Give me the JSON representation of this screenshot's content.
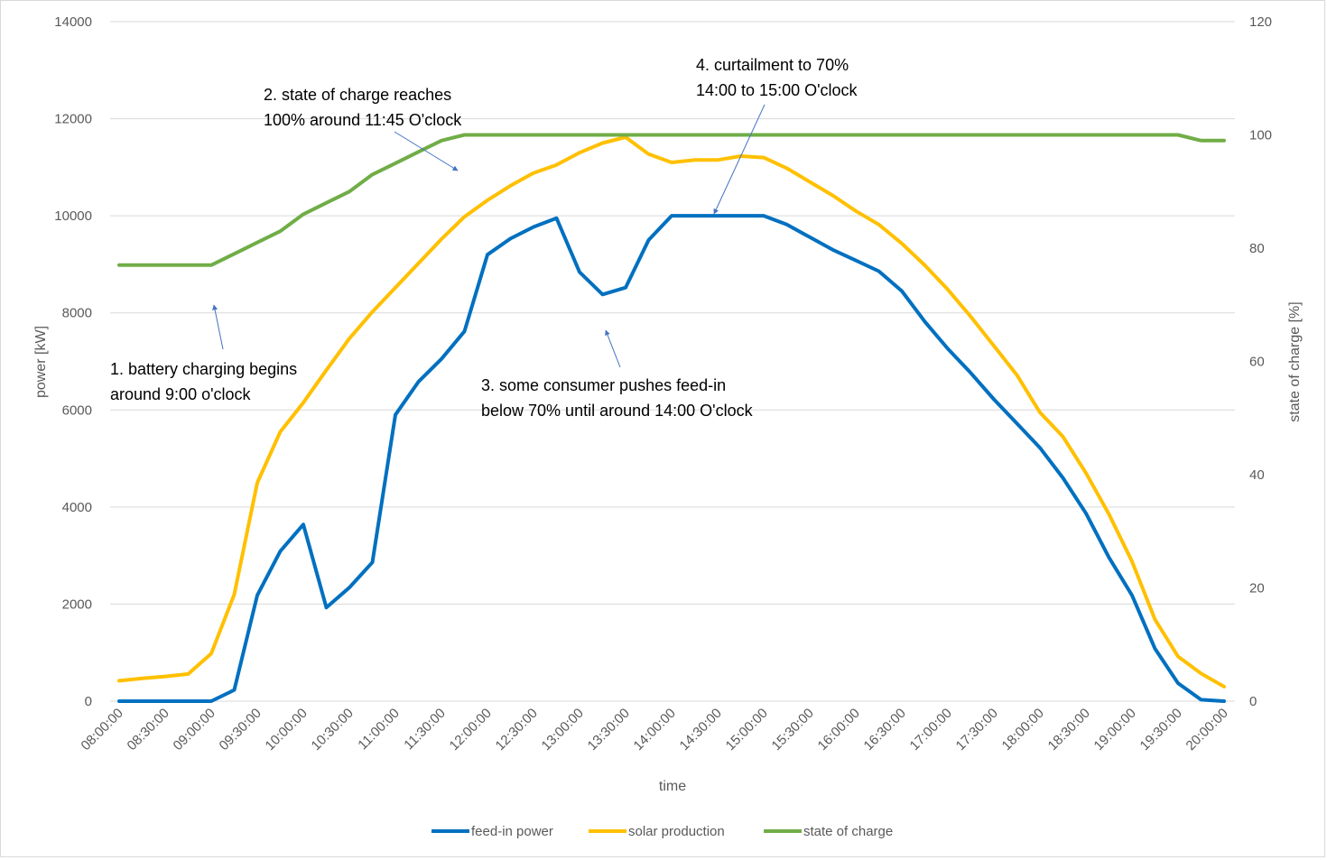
{
  "chart_data": {
    "type": "line",
    "title": "",
    "xlabel": "time",
    "ylabel": "power [kW]",
    "y2label": "state of charge [%]",
    "ylim": [
      0,
      14000
    ],
    "y2lim": [
      0,
      120
    ],
    "yticks": [
      "0",
      "2000",
      "4000",
      "6000",
      "8000",
      "10000",
      "12000",
      "14000"
    ],
    "y2ticks": [
      "0",
      "20",
      "40",
      "60",
      "80",
      "100",
      "120"
    ],
    "x_tick_labels": [
      "08:00:00",
      "08:30:00",
      "09:00:00",
      "09:30:00",
      "10:00:00",
      "10:30:00",
      "11:00:00",
      "11:30:00",
      "12:00:00",
      "12:30:00",
      "13:00:00",
      "13:30:00",
      "14:00:00",
      "14:30:00",
      "15:00:00",
      "15:30:00",
      "16:00:00",
      "16:30:00",
      "17:00:00",
      "17:30:00",
      "18:00:00",
      "18:30:00",
      "19:00:00",
      "19:30:00",
      "20:00:00"
    ],
    "x_interval_minutes": 15,
    "grid": true,
    "legend_position": "bottom",
    "colors": {
      "feed_in": "#0070c0",
      "solar": "#ffc000",
      "soc": "#70ad47",
      "arrow": "#4472c4"
    },
    "series": [
      {
        "name": "feed-in power",
        "axis": "left",
        "color": "#0070c0",
        "values": [
          0,
          0,
          0,
          0,
          0,
          230,
          2180,
          3090,
          3640,
          1930,
          2340,
          2860,
          5900,
          6580,
          7050,
          7620,
          9200,
          9530,
          9770,
          9950,
          8840,
          8380,
          8520,
          9500,
          10000,
          10000,
          10000,
          10000,
          10000,
          9820,
          9560,
          9300,
          9080,
          8860,
          8450,
          7820,
          7260,
          6760,
          6220,
          5720,
          5220,
          4600,
          3870,
          2960,
          2180,
          1080,
          370,
          30,
          0
        ]
      },
      {
        "name": "solar production",
        "axis": "left",
        "color": "#ffc000",
        "values": [
          420,
          470,
          510,
          560,
          980,
          2200,
          4500,
          5550,
          6150,
          6820,
          7470,
          8020,
          8520,
          9020,
          9520,
          9980,
          10320,
          10620,
          10880,
          11050,
          11300,
          11500,
          11620,
          11270,
          11100,
          11150,
          11150,
          11230,
          11200,
          10980,
          10700,
          10420,
          10100,
          9820,
          9430,
          8980,
          8480,
          7920,
          7320,
          6720,
          5950,
          5450,
          4700,
          3850,
          2880,
          1680,
          920,
          570,
          300
        ]
      },
      {
        "name": "state of charge",
        "axis": "right",
        "color": "#70ad47",
        "values": [
          77,
          77,
          77,
          77,
          77,
          79,
          81,
          83,
          86,
          88,
          90,
          93,
          95,
          97,
          99,
          100,
          100,
          100,
          100,
          100,
          100,
          100,
          100,
          100,
          100,
          100,
          100,
          100,
          100,
          100,
          100,
          100,
          100,
          100,
          100,
          100,
          100,
          100,
          100,
          100,
          100,
          100,
          100,
          100,
          100,
          100,
          100,
          99,
          99
        ]
      }
    ],
    "annotations": [
      {
        "lines": [
          "1. battery charging begins",
          "around 9:00 o'clock"
        ]
      },
      {
        "lines": [
          "2. state of charge reaches",
          "100% around 11:45 O'clock"
        ]
      },
      {
        "lines": [
          "3. some consumer pushes feed-in",
          "below 70% until around 14:00 O'clock"
        ]
      },
      {
        "lines": [
          "4. curtailment to 70%",
          "14:00 to 15:00 O'clock"
        ]
      }
    ]
  }
}
